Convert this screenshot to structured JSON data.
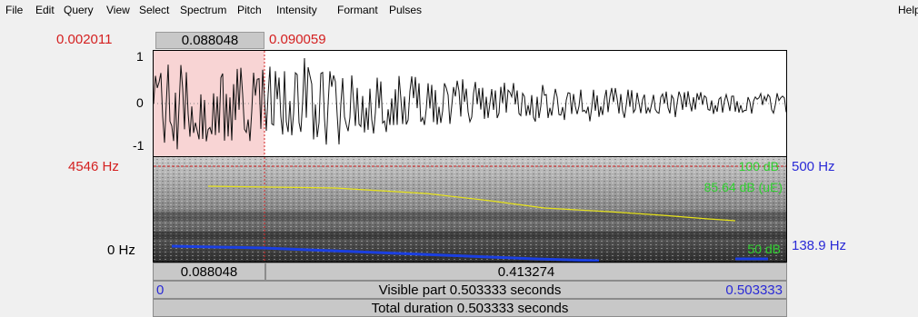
{
  "menu": {
    "items": [
      "File",
      "Edit",
      "Query",
      "View",
      "Select",
      "Spectrum",
      "Pitch",
      "Intensity",
      "Formant",
      "Pulses"
    ],
    "help": "Help"
  },
  "selection_top": {
    "start_time": "0.002011",
    "selection_length": "0.088048",
    "end_time": "0.090059"
  },
  "waveform": {
    "y_max_label": "1",
    "y_zero_label": "0",
    "y_min_label": "-1"
  },
  "spectrogram": {
    "freq_cursor_label": "4546 Hz",
    "freq_bottom_label": "0 Hz",
    "pitch_top_label": "500 Hz",
    "pitch_bottom_label": "138.9 Hz",
    "intensity_top_label": "100 dB",
    "intensity_value_label": "85.64 dB (uE)",
    "intensity_bottom_label": "50 dB"
  },
  "bottom_bars": {
    "selection_part": "0.088048",
    "remaining_part": "0.413274",
    "visible_start": "0",
    "visible_label": "Visible part 0.503333 seconds",
    "visible_end": "0.503333",
    "total_label": "Total duration 0.503333 seconds"
  },
  "colors": {
    "selection_time": "#d42020",
    "selection_fill": "#f8d4d4",
    "pitch_labels": "#2a2ad6",
    "intensity": "#2fd02f",
    "formant_curve": "#e6e21a",
    "pitch_curve": "#1b3fe0"
  }
}
